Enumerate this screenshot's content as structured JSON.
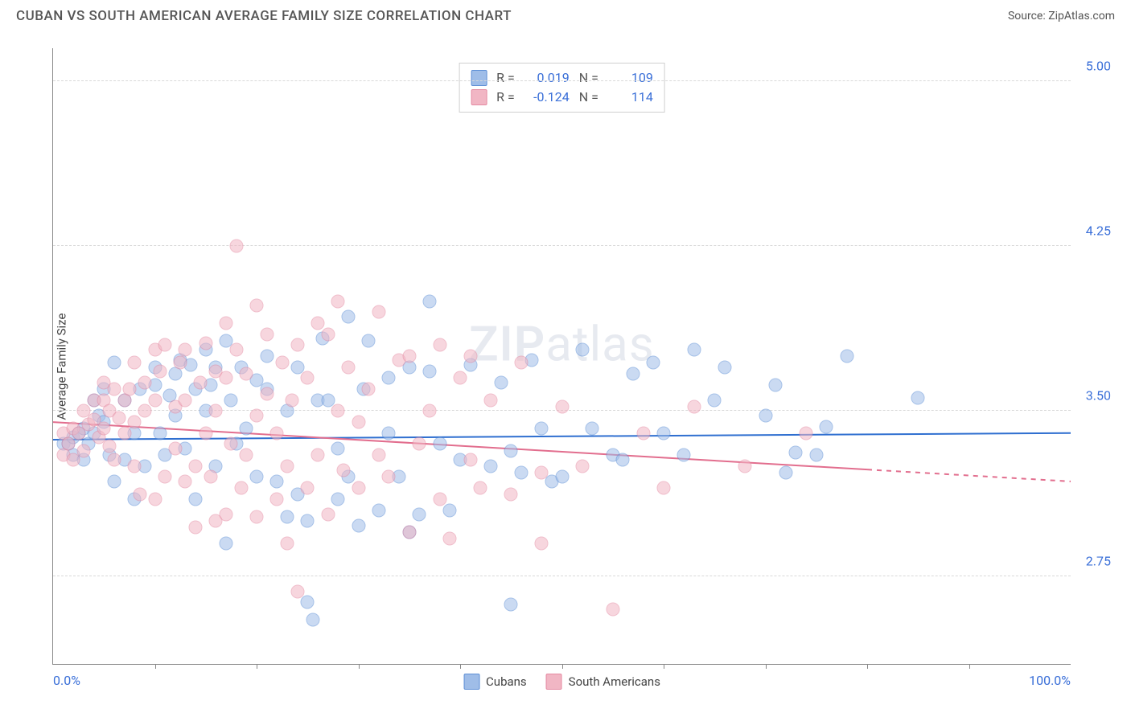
{
  "header": {
    "title": "CUBAN VS SOUTH AMERICAN AVERAGE FAMILY SIZE CORRELATION CHART",
    "source": "Source: ZipAtlas.com"
  },
  "ylabel": "Average Family Size",
  "watermark_html": "ZIPatlas",
  "chart": {
    "type": "scatter",
    "xlim": [
      0,
      100
    ],
    "ylim": [
      2.35,
      5.15
    ],
    "x_ticks_minor": [
      10,
      20,
      30,
      40,
      50,
      60,
      70,
      80,
      90
    ],
    "x_tick_labels": {
      "left": "0.0%",
      "right": "100.0%"
    },
    "y_grid": [
      2.75,
      3.5,
      4.25,
      5.0
    ],
    "y_tick_labels": [
      "2.75",
      "3.50",
      "4.25",
      "5.00"
    ],
    "background_color": "#ffffff",
    "grid_color": "#d8d8d8",
    "axis_color": "#888888",
    "label_color": "#3a6fd8",
    "point_radius": 8.5,
    "point_opacity": 0.55,
    "series": [
      {
        "name": "Cubans",
        "fill": "#9fbde8",
        "stroke": "#5e8fd6",
        "R": "0.019",
        "N": "109",
        "trend": {
          "y_at_x0": 3.37,
          "y_at_x100": 3.4,
          "color": "#2f6fd0",
          "width": 2,
          "dash_after_x": 100
        },
        "points": [
          [
            1,
            3.35
          ],
          [
            1.5,
            3.35
          ],
          [
            2,
            3.38
          ],
          [
            2,
            3.3
          ],
          [
            2.5,
            3.4
          ],
          [
            3,
            3.28
          ],
          [
            3,
            3.42
          ],
          [
            3.5,
            3.35
          ],
          [
            4,
            3.55
          ],
          [
            4,
            3.4
          ],
          [
            4.5,
            3.48
          ],
          [
            5,
            3.45
          ],
          [
            5,
            3.6
          ],
          [
            5.5,
            3.3
          ],
          [
            6,
            3.72
          ],
          [
            6,
            3.18
          ],
          [
            7,
            3.28
          ],
          [
            7,
            3.55
          ],
          [
            8,
            3.4
          ],
          [
            8,
            3.1
          ],
          [
            8.5,
            3.6
          ],
          [
            9,
            3.25
          ],
          [
            10,
            3.62
          ],
          [
            10,
            3.7
          ],
          [
            10.5,
            3.4
          ],
          [
            11,
            3.3
          ],
          [
            11.5,
            3.57
          ],
          [
            12,
            3.67
          ],
          [
            12,
            3.48
          ],
          [
            12.5,
            3.73
          ],
          [
            13,
            3.33
          ],
          [
            13.5,
            3.71
          ],
          [
            14,
            3.6
          ],
          [
            14,
            3.1
          ],
          [
            15,
            3.5
          ],
          [
            15,
            3.78
          ],
          [
            15.5,
            3.62
          ],
          [
            16,
            3.7
          ],
          [
            16,
            3.25
          ],
          [
            17,
            3.82
          ],
          [
            17,
            2.9
          ],
          [
            17.5,
            3.55
          ],
          [
            18,
            3.35
          ],
          [
            18.5,
            3.7
          ],
          [
            19,
            3.42
          ],
          [
            20,
            3.64
          ],
          [
            20,
            3.2
          ],
          [
            21,
            3.6
          ],
          [
            21,
            3.75
          ],
          [
            22,
            3.18
          ],
          [
            23,
            3.02
          ],
          [
            23,
            3.5
          ],
          [
            24,
            3.12
          ],
          [
            24,
            3.7
          ],
          [
            25,
            3.0
          ],
          [
            25,
            2.63
          ],
          [
            25.5,
            2.55
          ],
          [
            26,
            3.55
          ],
          [
            26.5,
            3.83
          ],
          [
            27,
            3.55
          ],
          [
            28,
            3.1
          ],
          [
            28,
            3.33
          ],
          [
            29,
            3.2
          ],
          [
            29,
            3.93
          ],
          [
            30,
            2.98
          ],
          [
            30.5,
            3.6
          ],
          [
            31,
            3.82
          ],
          [
            32,
            3.05
          ],
          [
            33,
            3.65
          ],
          [
            33,
            3.4
          ],
          [
            34,
            3.2
          ],
          [
            35,
            2.95
          ],
          [
            35,
            3.7
          ],
          [
            36,
            3.03
          ],
          [
            37,
            3.68
          ],
          [
            37,
            4.0
          ],
          [
            38,
            3.35
          ],
          [
            39,
            3.05
          ],
          [
            40,
            3.28
          ],
          [
            41,
            3.71
          ],
          [
            43,
            3.25
          ],
          [
            44,
            3.63
          ],
          [
            45,
            3.32
          ],
          [
            45,
            2.62
          ],
          [
            46,
            3.22
          ],
          [
            47,
            3.73
          ],
          [
            48,
            3.42
          ],
          [
            49,
            3.18
          ],
          [
            50,
            3.2
          ],
          [
            52,
            3.78
          ],
          [
            53,
            3.42
          ],
          [
            55,
            3.3
          ],
          [
            56,
            3.28
          ],
          [
            57,
            3.67
          ],
          [
            59,
            3.72
          ],
          [
            60,
            3.4
          ],
          [
            62,
            3.3
          ],
          [
            63,
            3.78
          ],
          [
            65,
            3.55
          ],
          [
            66,
            3.7
          ],
          [
            70,
            3.48
          ],
          [
            71,
            3.62
          ],
          [
            72,
            3.22
          ],
          [
            73,
            3.31
          ],
          [
            75,
            3.3
          ],
          [
            76,
            3.43
          ],
          [
            78,
            3.75
          ],
          [
            85,
            3.56
          ]
        ]
      },
      {
        "name": "South Americans",
        "fill": "#f1b6c4",
        "stroke": "#e58aa2",
        "R": "-0.124",
        "N": "114",
        "trend": {
          "y_at_x0": 3.45,
          "y_at_x100": 3.18,
          "color": "#e26e8e",
          "width": 2,
          "dash_after_x": 80
        },
        "points": [
          [
            1,
            3.3
          ],
          [
            1,
            3.4
          ],
          [
            1.5,
            3.35
          ],
          [
            2,
            3.42
          ],
          [
            2,
            3.28
          ],
          [
            2.5,
            3.4
          ],
          [
            3,
            3.5
          ],
          [
            3,
            3.32
          ],
          [
            3.5,
            3.44
          ],
          [
            4,
            3.46
          ],
          [
            4,
            3.55
          ],
          [
            4.5,
            3.38
          ],
          [
            5,
            3.42
          ],
          [
            5,
            3.55
          ],
          [
            5,
            3.63
          ],
          [
            5.5,
            3.5
          ],
          [
            5.5,
            3.34
          ],
          [
            6,
            3.6
          ],
          [
            6,
            3.28
          ],
          [
            6.5,
            3.47
          ],
          [
            7,
            3.55
          ],
          [
            7,
            3.4
          ],
          [
            7.5,
            3.6
          ],
          [
            8,
            3.25
          ],
          [
            8,
            3.45
          ],
          [
            8,
            3.72
          ],
          [
            8.5,
            3.12
          ],
          [
            9,
            3.63
          ],
          [
            9,
            3.5
          ],
          [
            10,
            3.78
          ],
          [
            10,
            3.55
          ],
          [
            10,
            3.1
          ],
          [
            10.5,
            3.68
          ],
          [
            11,
            3.2
          ],
          [
            11,
            3.8
          ],
          [
            12,
            3.52
          ],
          [
            12,
            3.33
          ],
          [
            12.5,
            3.72
          ],
          [
            13,
            3.18
          ],
          [
            13,
            3.55
          ],
          [
            13,
            3.78
          ],
          [
            14,
            3.25
          ],
          [
            14,
            2.97
          ],
          [
            14.5,
            3.63
          ],
          [
            15,
            3.81
          ],
          [
            15,
            3.4
          ],
          [
            15.5,
            3.2
          ],
          [
            16,
            3.68
          ],
          [
            16,
            3.0
          ],
          [
            16,
            3.5
          ],
          [
            17,
            3.9
          ],
          [
            17,
            3.65
          ],
          [
            17,
            3.03
          ],
          [
            17.5,
            3.35
          ],
          [
            18,
            3.78
          ],
          [
            18,
            4.25
          ],
          [
            18.5,
            3.15
          ],
          [
            19,
            3.67
          ],
          [
            19,
            3.3
          ],
          [
            20,
            3.98
          ],
          [
            20,
            3.48
          ],
          [
            20,
            3.02
          ],
          [
            21,
            3.85
          ],
          [
            21,
            3.58
          ],
          [
            22,
            3.1
          ],
          [
            22,
            3.4
          ],
          [
            22.5,
            3.72
          ],
          [
            23,
            3.25
          ],
          [
            23,
            2.9
          ],
          [
            23.5,
            3.55
          ],
          [
            24,
            3.8
          ],
          [
            24,
            2.68
          ],
          [
            25,
            3.15
          ],
          [
            25,
            3.65
          ],
          [
            26,
            3.3
          ],
          [
            26,
            3.9
          ],
          [
            27,
            3.03
          ],
          [
            27,
            3.85
          ],
          [
            28,
            3.5
          ],
          [
            28,
            4.0
          ],
          [
            28.5,
            3.23
          ],
          [
            29,
            3.7
          ],
          [
            30,
            3.15
          ],
          [
            30,
            3.45
          ],
          [
            31,
            3.6
          ],
          [
            32,
            3.95
          ],
          [
            32,
            3.3
          ],
          [
            33,
            3.2
          ],
          [
            34,
            3.73
          ],
          [
            35,
            3.75
          ],
          [
            35,
            2.95
          ],
          [
            36,
            3.35
          ],
          [
            37,
            3.5
          ],
          [
            38,
            3.1
          ],
          [
            38,
            3.8
          ],
          [
            39,
            2.92
          ],
          [
            40,
            3.65
          ],
          [
            41,
            3.28
          ],
          [
            41,
            3.75
          ],
          [
            42,
            3.15
          ],
          [
            43,
            3.55
          ],
          [
            45,
            3.12
          ],
          [
            46,
            3.72
          ],
          [
            48,
            3.22
          ],
          [
            48,
            2.9
          ],
          [
            50,
            3.52
          ],
          [
            52,
            3.25
          ],
          [
            55,
            2.6
          ],
          [
            58,
            3.4
          ],
          [
            60,
            3.15
          ],
          [
            63,
            3.52
          ],
          [
            68,
            3.25
          ],
          [
            74,
            3.4
          ]
        ]
      }
    ]
  },
  "legend_bottom": [
    "Cubans",
    "South Americans"
  ]
}
